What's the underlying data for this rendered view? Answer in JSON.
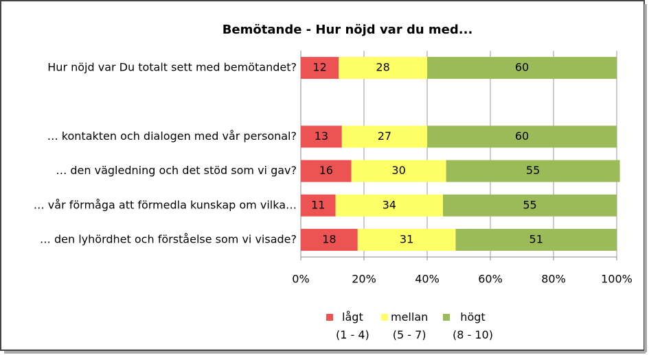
{
  "chart_data": {
    "type": "stacked-barh",
    "title": "Bemötande - Hur nöjd var du med...",
    "categories": [
      "Hur nöjd var Du totalt sett med bemötandet?",
      null,
      "…  kontakten och dialogen med vår personal?",
      "…  den vägledning och det stöd som vi gav?",
      "…  vår förmåga att förmedla kunskap om vilka…",
      "…  den lyhördhet och förståelse som vi visade?"
    ],
    "series": [
      {
        "name": "lågt\n(1 - 4)",
        "color": "#ee5353",
        "values": [
          12,
          null,
          13,
          16,
          11,
          18
        ]
      },
      {
        "name": "mellan\n(5 - 7)",
        "color": "#ffff66",
        "values": [
          28,
          null,
          27,
          30,
          34,
          31
        ]
      },
      {
        "name": "högt\n(8 - 10)",
        "color": "#9bbb59",
        "values": [
          60,
          null,
          60,
          55,
          55,
          51
        ]
      }
    ],
    "xlim": [
      0,
      100
    ],
    "xticks": [
      {
        "value": 0,
        "label": "0%"
      },
      {
        "value": 20,
        "label": "20%"
      },
      {
        "value": 40,
        "label": "40%"
      },
      {
        "value": 60,
        "label": "60%"
      },
      {
        "value": 80,
        "label": "80%"
      },
      {
        "value": 100,
        "label": "100%"
      }
    ],
    "grid": true
  }
}
